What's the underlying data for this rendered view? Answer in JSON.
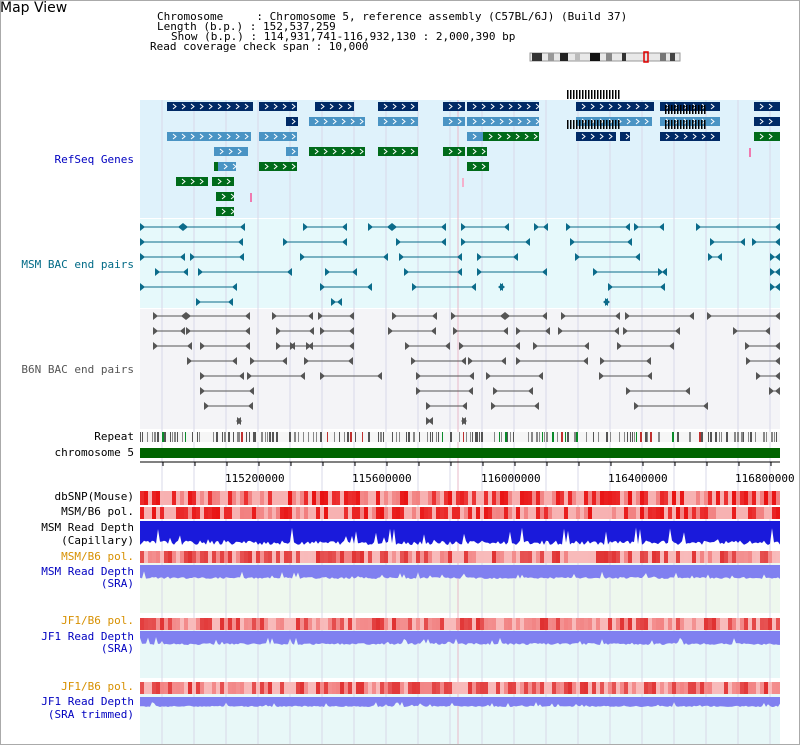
{
  "title": "Map View",
  "info": {
    "line1": "Chromosome     : Chromosome 5, reference assembly (C57BL/6J) (Build 37)",
    "line2": "Length (b.p.) : 152,537,259",
    "line3": "Show (b.p.) : 114,931,741-116,932,130 : 2,000,390 bp",
    "line4": "Read coverage check span : 10,000"
  },
  "tracks": {
    "refseq": "RefSeq Genes",
    "msm_bac": "MSM BAC end pairs",
    "b6n_bac": "B6N BAC end pairs",
    "repeat": "Repeat",
    "chrom": "chromosome 5",
    "dbsnp": "dbSNP(Mouse)",
    "msm_b6_pol": "MSM/B6 pol.",
    "msm_depth_cap1": "MSM Read Depth",
    "msm_depth_cap2": "(Capillary)",
    "msm_b6_pol2": "MSM/B6 pol.",
    "msm_depth_sra1": "MSM Read Depth",
    "msm_depth_sra2": "(SRA)",
    "jf1_b6_pol": "JF1/B6 pol.",
    "jf1_depth_sra1": "JF1 Read Depth",
    "jf1_depth_sra2": "(SRA)",
    "jf1_b6_pol2": "JF1/B6 pol.",
    "jf1_trim1": "JF1 Read Depth",
    "jf1_trim2": "(SRA trimmed)"
  },
  "ticks": [
    "115200000",
    "115600000",
    "116000000",
    "116400000",
    "116800000"
  ],
  "colors": {
    "refseq_bg": "#dff2fb",
    "msm_bg": "#e6f9fb",
    "b6n_bg": "#f4f4f7",
    "chrom_bar": "#006400",
    "gene_dark": "#002a66",
    "gene_mid": "#4a94c4",
    "gene_green": "#006b1a",
    "bac_msm": "#0b6b8a",
    "bac_b6n": "#555555",
    "depth_cap": "#1a1adb",
    "depth_sra": "#8080f0"
  }
}
